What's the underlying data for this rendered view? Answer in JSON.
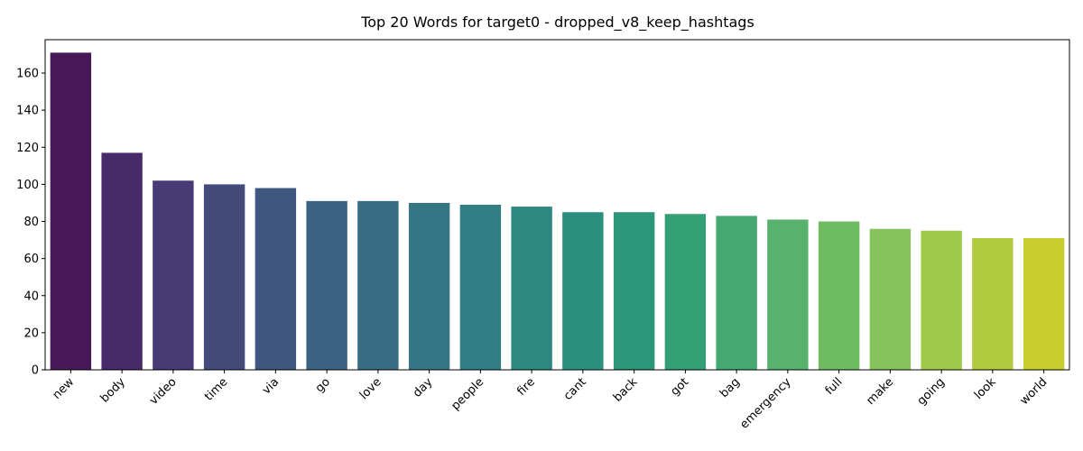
{
  "chart_data": {
    "type": "bar",
    "title": "Top 20 Words for target0 - dropped_v8_keep_hashtags",
    "xlabel": "",
    "ylabel": "",
    "categories": [
      "new",
      "body",
      "video",
      "time",
      "via",
      "go",
      "love",
      "day",
      "people",
      "fire",
      "cant",
      "back",
      "got",
      "bag",
      "emergency",
      "full",
      "make",
      "going",
      "look",
      "world"
    ],
    "values": [
      171,
      117,
      102,
      100,
      98,
      91,
      91,
      90,
      89,
      88,
      85,
      85,
      84,
      83,
      81,
      80,
      76,
      75,
      71,
      71
    ],
    "ylim": [
      0,
      178
    ],
    "yticks": [
      0,
      20,
      40,
      60,
      80,
      100,
      120,
      140,
      160
    ],
    "colors": [
      "#471758",
      "#482a6a",
      "#483a74",
      "#444a7a",
      "#40587f",
      "#3b6381",
      "#376c83",
      "#347684",
      "#307f84",
      "#2d8882",
      "#2b8f7e",
      "#2c9679",
      "#339f74",
      "#45a971",
      "#58b26d",
      "#70bc62",
      "#84c35c",
      "#9ec949",
      "#b2ca3d",
      "#c9cd30"
    ],
    "grid": false,
    "legend": "none"
  }
}
